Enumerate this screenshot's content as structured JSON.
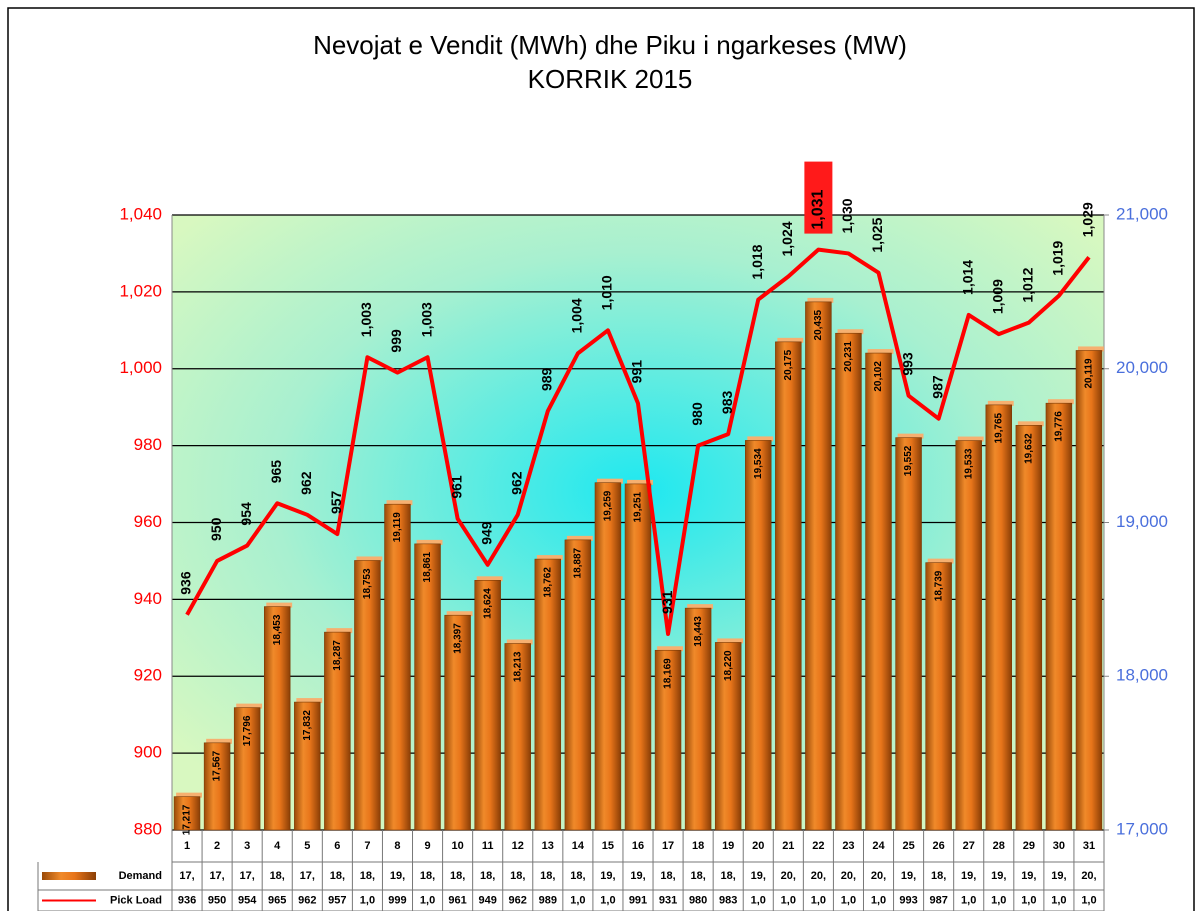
{
  "chart_data": {
    "type": "bar-line",
    "title": "Nevojat e Vendit (MWh) dhe Piku i ngarkeses (MW)",
    "subtitle": "KORRIK 2015",
    "categories": [
      "1",
      "2",
      "3",
      "4",
      "5",
      "6",
      "7",
      "8",
      "9",
      "10",
      "11",
      "12",
      "13",
      "14",
      "15",
      "16",
      "17",
      "18",
      "19",
      "20",
      "21",
      "22",
      "23",
      "24",
      "25",
      "26",
      "27",
      "28",
      "29",
      "30",
      "31"
    ],
    "series": [
      {
        "name": "Demand",
        "type": "bar",
        "axis": "y2",
        "color": "#e8751a",
        "values": [
          17217,
          17567,
          17796,
          18453,
          17832,
          18287,
          18753,
          19119,
          18861,
          18397,
          18624,
          18213,
          18762,
          18887,
          19259,
          19251,
          18169,
          18443,
          18220,
          19534,
          20175,
          20435,
          20231,
          20102,
          19552,
          18739,
          19533,
          19765,
          19632,
          19776,
          20119
        ],
        "value_labels": [
          "17,217",
          "17,567",
          "17,796",
          "18,453",
          "17,832",
          "18,287",
          "18,753",
          "19,119",
          "18,861",
          "18,397",
          "18,624",
          "18,213",
          "18,762",
          "18,887",
          "19,259",
          "19,251",
          "18,169",
          "18,443",
          "18,220",
          "19,534",
          "20,175",
          "20,435",
          "20,231",
          "20,102",
          "19,552",
          "18,739",
          "19,533",
          "19,765",
          "19,632",
          "19,776",
          "20,119"
        ],
        "table_labels": [
          "17,",
          "17,",
          "17,",
          "18,",
          "17,",
          "18,",
          "18,",
          "19,",
          "18,",
          "18,",
          "18,",
          "18,",
          "18,",
          "18,",
          "19,",
          "19,",
          "18,",
          "18,",
          "18,",
          "19,",
          "20,",
          "20,",
          "20,",
          "20,",
          "19,",
          "18,",
          "19,",
          "19,",
          "19,",
          "19,",
          "20,"
        ]
      },
      {
        "name": "Pick Load",
        "type": "line",
        "axis": "y",
        "color": "#ff0000",
        "values": [
          936,
          950,
          954,
          965,
          962,
          957,
          1003,
          999,
          1003,
          961,
          949,
          962,
          989,
          1004,
          1010,
          991,
          931,
          980,
          983,
          1018,
          1024,
          1031,
          1030,
          1025,
          993,
          987,
          1014,
          1009,
          1012,
          1019,
          1029
        ],
        "value_labels": [
          "936",
          "950",
          "954",
          "965",
          "962",
          "957",
          "1,003",
          "999",
          "1,003",
          "961",
          "949",
          "962",
          "989",
          "1,004",
          "1,010",
          "991",
          "931",
          "980",
          "983",
          "1,018",
          "1,024",
          "1,031",
          "1,030",
          "1,025",
          "993",
          "987",
          "1,014",
          "1,009",
          "1,012",
          "1,019",
          "1,029"
        ],
        "table_labels": [
          "936",
          "950",
          "954",
          "965",
          "962",
          "957",
          "1,0",
          "999",
          "1,0",
          "961",
          "949",
          "962",
          "989",
          "1,0",
          "1,0",
          "991",
          "931",
          "980",
          "983",
          "1,0",
          "1,0",
          "1,0",
          "1,0",
          "1,0",
          "993",
          "987",
          "1,0",
          "1,0",
          "1,0",
          "1,0",
          "1,0"
        ]
      }
    ],
    "ylim": [
      880,
      1040
    ],
    "yticks": [
      880,
      900,
      920,
      940,
      960,
      980,
      {
        "value": 1000,
        "label": "1,000"
      },
      {
        "value": 1020,
        "label": "1,020"
      },
      {
        "value": 1040,
        "label": "1,040"
      }
    ],
    "y_color": "#ff0000",
    "y2lim": [
      17000,
      21000
    ],
    "y2ticks": [
      {
        "value": 17000,
        "label": "17,000"
      },
      {
        "value": 18000,
        "label": "18,000"
      },
      {
        "value": 19000,
        "label": "19,000"
      },
      {
        "value": 20000,
        "label": "20,000"
      },
      {
        "value": 21000,
        "label": "21,000"
      }
    ],
    "y2_color": "#4a6fdc",
    "grid": true
  }
}
